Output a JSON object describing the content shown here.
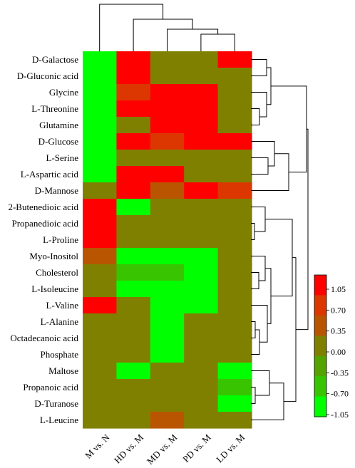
{
  "chart_data": {
    "type": "heatmap",
    "title": "",
    "xlabel": "",
    "ylabel": "",
    "columns": [
      "M vs. N",
      "HD vs. M",
      "MD vs. M",
      "PD vs. M",
      "LD vs. M"
    ],
    "rows": [
      "D-Galactose",
      "D-Gluconic acid",
      "Glycine",
      "L-Threonine",
      "Glutamine",
      "D-Glucose",
      "L-Serine",
      "L-Aspartic acid",
      "D-Mannose",
      "2-Butenedioic acid",
      "Propanedioic acid",
      "L-Proline",
      "Myo-Inositol",
      "Cholesterol",
      "L-Isoleucine",
      "L-Valine",
      "L-Alanine",
      "Octadecanoic acid",
      "Phosphate",
      "Maltose",
      "Propanoic acid",
      "D-Turanose",
      "L-Leucine"
    ],
    "values": [
      [
        -1.05,
        1.05,
        0,
        0,
        1.05
      ],
      [
        -1.05,
        1.05,
        0,
        0,
        0
      ],
      [
        -1.05,
        0.7,
        1.05,
        1.05,
        0
      ],
      [
        -1.05,
        1.05,
        1.05,
        1.05,
        0
      ],
      [
        -1.05,
        0,
        1.05,
        1.05,
        0
      ],
      [
        -1.05,
        1.05,
        0.7,
        1.05,
        1.05
      ],
      [
        -1.05,
        0,
        0,
        0,
        0
      ],
      [
        -1.05,
        1.05,
        1.05,
        0,
        0
      ],
      [
        0,
        1.05,
        0.35,
        1.05,
        0.7
      ],
      [
        1.05,
        -1.05,
        0,
        0,
        0
      ],
      [
        1.05,
        0,
        0,
        0,
        0
      ],
      [
        1.05,
        0,
        0,
        0,
        0
      ],
      [
        0.35,
        -1.05,
        -1.05,
        -1.05,
        0
      ],
      [
        0,
        -0.7,
        -0.7,
        -1.05,
        0
      ],
      [
        0,
        -1.05,
        -1.05,
        -1.05,
        0
      ],
      [
        1.05,
        0,
        -1.05,
        -1.05,
        0
      ],
      [
        0,
        0,
        -1.05,
        0,
        0
      ],
      [
        0,
        0,
        -1.05,
        0,
        0
      ],
      [
        0,
        0,
        -1.05,
        0,
        0
      ],
      [
        0,
        -1.05,
        0,
        0,
        -1.05
      ],
      [
        0,
        0,
        0,
        0,
        -0.7
      ],
      [
        0,
        0,
        0,
        0,
        -1.05
      ],
      [
        0,
        0,
        0.35,
        0,
        0
      ]
    ],
    "legend": {
      "placement": "right",
      "ticks": [
        1.05,
        0.7,
        0.35,
        0.0,
        -0.35,
        -0.7,
        -1.05
      ],
      "tick_labels": [
        "1.05",
        "0.70",
        "0.35",
        "0.00",
        "-0.35",
        "-0.70",
        "-1.05"
      ],
      "colors": [
        "#ff0000",
        "#dc3700",
        "#b95500",
        "#808000",
        "#55a300",
        "#38c400",
        "#00ff00"
      ]
    }
  }
}
